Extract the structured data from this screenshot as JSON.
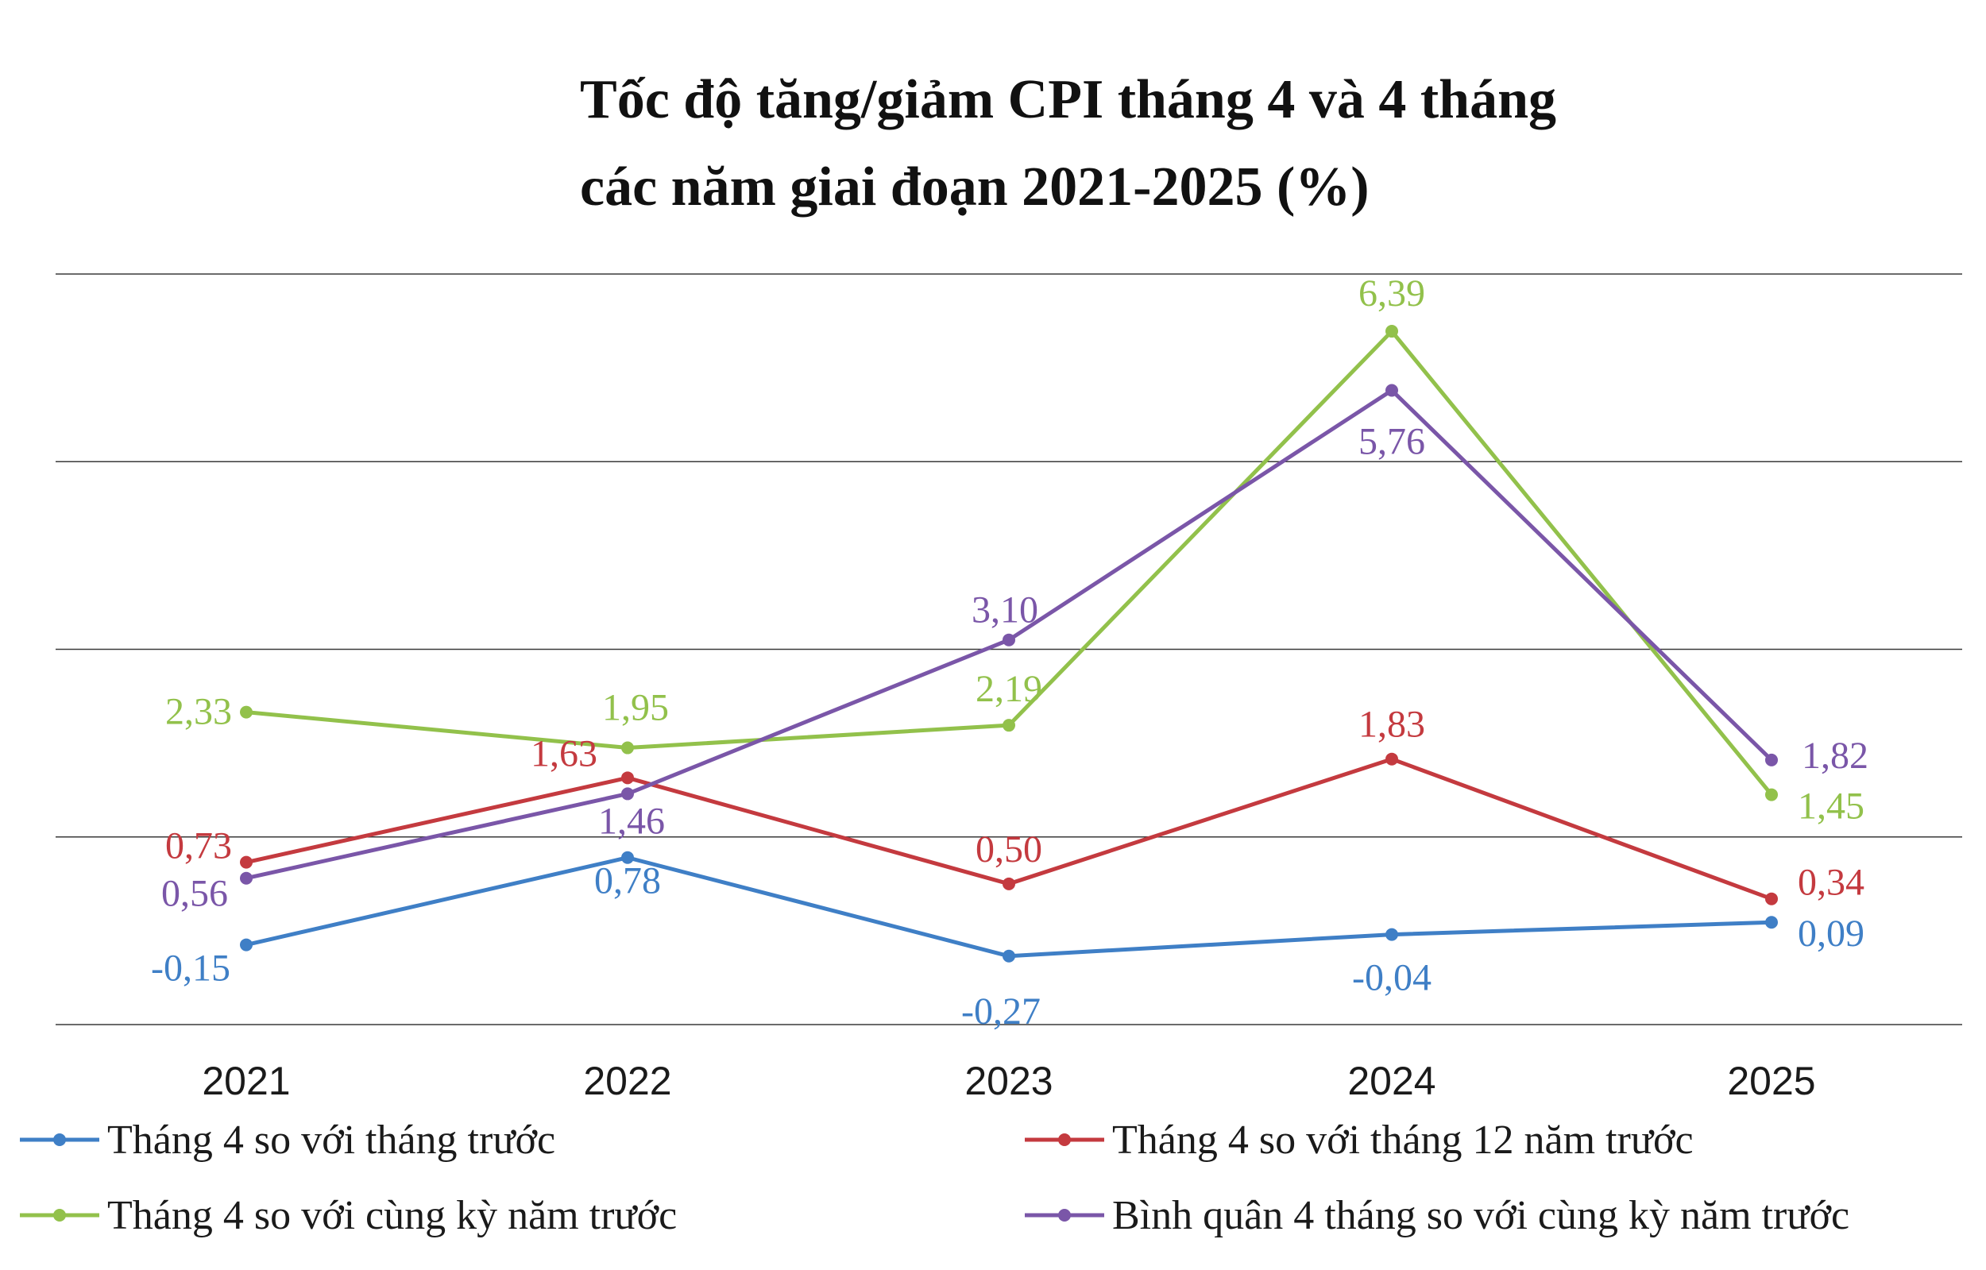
{
  "chart_data": {
    "type": "line",
    "title_line1": "Tốc độ tăng/giảm CPI tháng 4 và 4 tháng",
    "title_line2": "các năm giai đoạn 2021-2025 (%)",
    "categories": [
      "2021",
      "2022",
      "2023",
      "2024",
      "2025"
    ],
    "ylim": [
      -1,
      7
    ],
    "grid": true,
    "legend_position": "bottom",
    "series": [
      {
        "name": "Tháng 4 so với tháng trước",
        "color": "#3f7fc6",
        "values": [
          -0.15,
          0.78,
          -0.27,
          -0.04,
          0.09
        ],
        "labels": [
          "-0,15",
          "0,78",
          "-0,27",
          "-0,04",
          "0,09"
        ]
      },
      {
        "name": "Tháng 4 so với tháng 12 năm trước",
        "color": "#c43a3f",
        "values": [
          0.73,
          1.63,
          0.5,
          1.83,
          0.34
        ],
        "labels": [
          "0,73",
          "1,63",
          "0,50",
          "1,83",
          "0,34"
        ]
      },
      {
        "name": "Tháng 4 so với cùng kỳ năm trước",
        "color": "#92c14b",
        "values": [
          2.33,
          1.95,
          2.19,
          6.39,
          1.45
        ],
        "labels": [
          "2,33",
          "1,95",
          "2,19",
          "6,39",
          "1,45"
        ]
      },
      {
        "name": "Bình quân 4 tháng so với cùng kỳ năm trước",
        "color": "#7a56a8",
        "values": [
          0.56,
          1.46,
          3.1,
          5.76,
          1.82
        ],
        "labels": [
          "0,56",
          "1,46",
          "3,10",
          "5,76",
          "1,82"
        ]
      }
    ]
  }
}
